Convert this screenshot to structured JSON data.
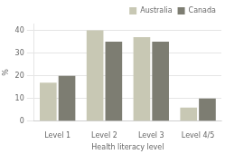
{
  "chart_data": {
    "type": "bar",
    "categories": [
      "Level 1",
      "Level 2",
      "Level 3",
      "Level 4/5"
    ],
    "series": [
      {
        "name": "Australia",
        "color": "#c8c8b4",
        "values": [
          17,
          40,
          37,
          6
        ]
      },
      {
        "name": "Canada",
        "color": "#7d7d72",
        "values": [
          20,
          35,
          35,
          10
        ]
      }
    ],
    "xlabel": "Health literacy level",
    "ylabel": "%",
    "ylim": [
      0,
      43
    ],
    "yticks": [
      0,
      10,
      20,
      30,
      40
    ],
    "grid": true,
    "legend": "upper right"
  }
}
